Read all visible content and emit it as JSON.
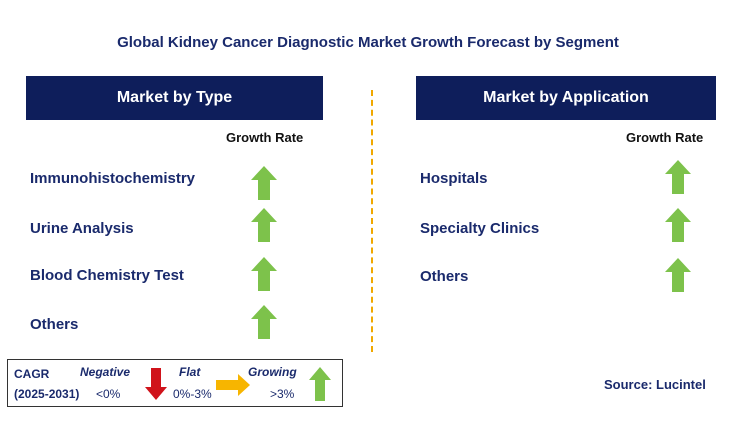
{
  "title": "Global Kidney Cancer Diagnostic Market Growth Forecast by Segment",
  "colors": {
    "header_bg": "#0e1e5b",
    "text": "#1a2a6c",
    "growing": "#7dc24b",
    "negative": "#d0131b",
    "flat": "#f7b500",
    "divider": "#f0a800"
  },
  "left_panel": {
    "header": "Market by Type",
    "growth_label": "Growth Rate",
    "items": [
      {
        "label": "Immunohistochemistry",
        "trend": "growing"
      },
      {
        "label": "Urine Analysis",
        "trend": "growing"
      },
      {
        "label": "Blood Chemistry Test",
        "trend": "growing"
      },
      {
        "label": "Others",
        "trend": "growing"
      }
    ]
  },
  "right_panel": {
    "header": "Market by Application",
    "growth_label": "Growth Rate",
    "items": [
      {
        "label": "Hospitals",
        "trend": "growing"
      },
      {
        "label": "Specialty Clinics",
        "trend": "growing"
      },
      {
        "label": "Others",
        "trend": "growing"
      }
    ]
  },
  "legend": {
    "cagr_label": "CAGR",
    "period": "(2025-2031)",
    "negative": {
      "label": "Negative",
      "range": "<0%"
    },
    "flat": {
      "label": "Flat",
      "range": "0%-3%"
    },
    "growing": {
      "label": "Growing",
      "range": ">3%"
    }
  },
  "source": "Source: Lucintel"
}
